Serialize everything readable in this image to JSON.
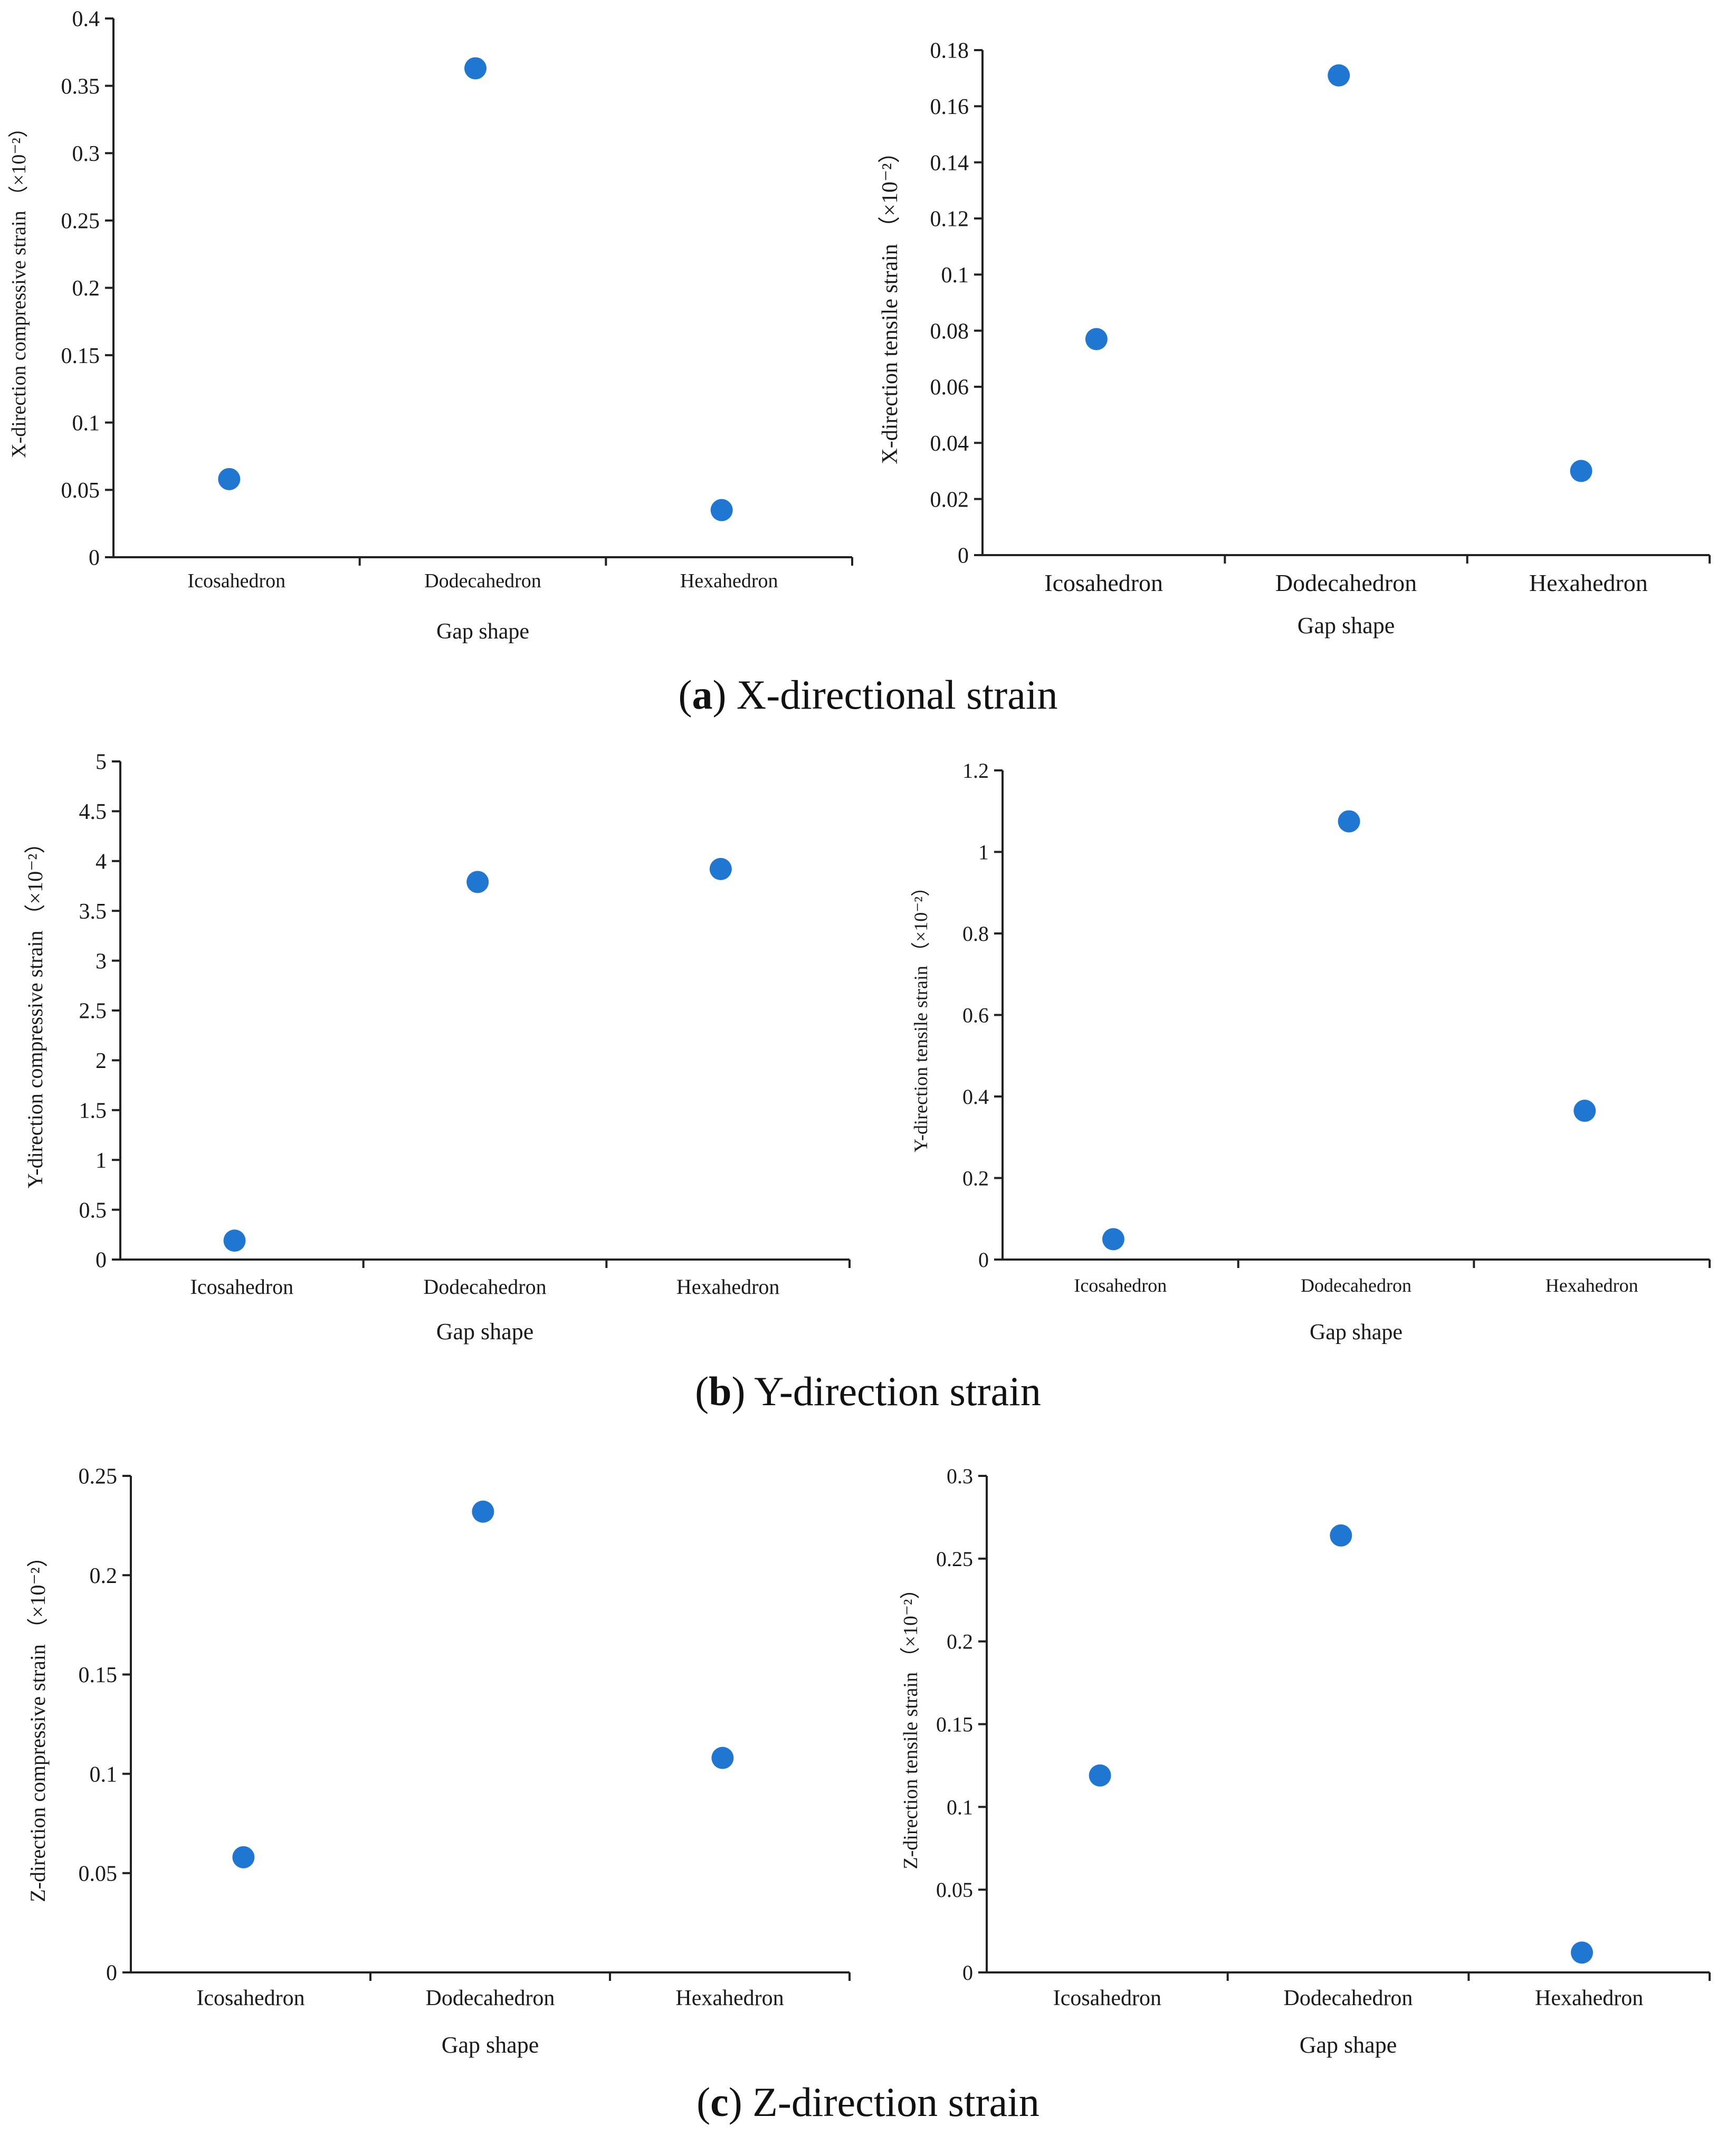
{
  "figure": {
    "captions": [
      {
        "letter": "a",
        "text": " X-directional strain"
      },
      {
        "letter": "b",
        "text": " Y-direction strain"
      },
      {
        "letter": "c",
        "text": " Z-direction strain"
      }
    ]
  },
  "colors": {
    "point": "#1f77d1",
    "point_alt": "#1a6fc9",
    "axis": "#222222"
  },
  "chart_data": [
    {
      "type": "scatter",
      "title": "",
      "xlabel": "Gap shape",
      "ylabel": "X-direction compressive strain （×10⁻²）",
      "categories": [
        "Icosahedron",
        "Dodecahedron",
        "Hexahedron"
      ],
      "values": [
        0.058,
        0.363,
        0.035
      ],
      "ylim": [
        0,
        0.4
      ],
      "yticks": [
        "0",
        "0.05",
        "0.1",
        "0.15",
        "0.2",
        "0.25",
        "0.3",
        "0.35",
        "0.4"
      ],
      "grid": false
    },
    {
      "type": "scatter",
      "title": "",
      "xlabel": "Gap shape",
      "ylabel": "X-direction tensile strain （×10⁻²）",
      "categories": [
        "Icosahedron",
        "Dodecahedron",
        "Hexahedron"
      ],
      "values": [
        0.077,
        0.171,
        0.03
      ],
      "ylim": [
        0,
        0.18
      ],
      "yticks": [
        "0",
        "0.02",
        "0.04",
        "0.06",
        "0.08",
        "0.1",
        "0.12",
        "0.14",
        "0.16",
        "0.18"
      ],
      "grid": false
    },
    {
      "type": "scatter",
      "title": "",
      "xlabel": "Gap shape",
      "ylabel": "Y-direction compressive strain （×10⁻²）",
      "categories": [
        "Icosahedron",
        "Dodecahedron",
        "Hexahedron"
      ],
      "values": [
        0.19,
        3.79,
        3.92
      ],
      "ylim": [
        0,
        5
      ],
      "yticks": [
        "0",
        "0.5",
        "1",
        "1.5",
        "2",
        "2.5",
        "3",
        "3.5",
        "4",
        "4.5",
        "5"
      ],
      "grid": false
    },
    {
      "type": "scatter",
      "title": "",
      "xlabel": "Gap shape",
      "ylabel": "Y-direction tensile strain （×10⁻²）",
      "categories": [
        "Icosahedron",
        "Dodecahedron",
        "Hexahedron"
      ],
      "values": [
        0.05,
        1.075,
        0.365
      ],
      "ylim": [
        0,
        1.2
      ],
      "yticks": [
        "0",
        "0.2",
        "0.4",
        "0.6",
        "0.8",
        "1",
        "1.2"
      ],
      "grid": false
    },
    {
      "type": "scatter",
      "title": "",
      "xlabel": "Gap shape",
      "ylabel": "Z-direction compressive strain （×10⁻²）",
      "categories": [
        "Icosahedron",
        "Dodecahedron",
        "Hexahedron"
      ],
      "values": [
        0.058,
        0.232,
        0.108
      ],
      "ylim": [
        0,
        0.25
      ],
      "yticks": [
        "0",
        "0.05",
        "0.1",
        "0.15",
        "0.2",
        "0.25"
      ],
      "grid": false
    },
    {
      "type": "scatter",
      "title": "",
      "xlabel": "Gap shape",
      "ylabel": "Z-direction tensile strain （×10⁻²）",
      "categories": [
        "Icosahedron",
        "Dodecahedron",
        "Hexahedron"
      ],
      "values": [
        0.119,
        0.264,
        0.012
      ],
      "ylim": [
        0,
        0.3
      ],
      "yticks": [
        "0",
        "0.05",
        "0.1",
        "0.15",
        "0.2",
        "0.25",
        "0.3"
      ],
      "grid": false
    }
  ]
}
